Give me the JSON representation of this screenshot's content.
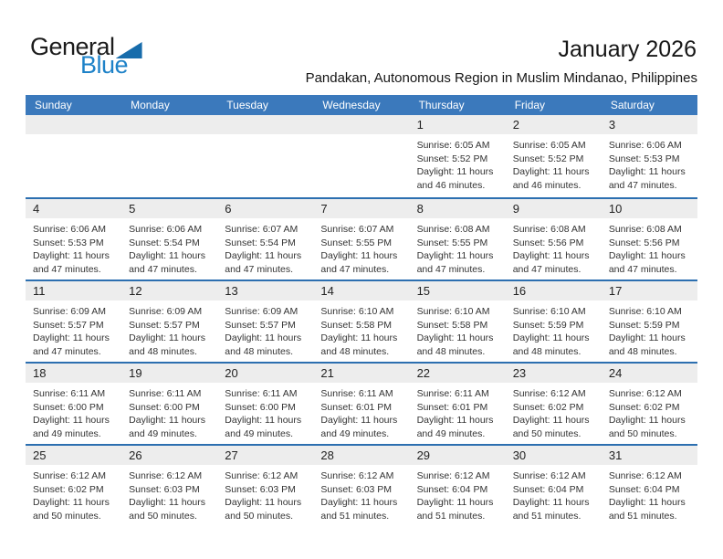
{
  "logo": {
    "part1": "General",
    "part2": "Blue"
  },
  "header": {
    "title": "January 2026",
    "subtitle": "Pandakan, Autonomous Region in Muslim Mindanao, Philippines"
  },
  "colors": {
    "header-blue": "#3b79bc",
    "separator-blue": "#2c6fb0",
    "band-gray": "#ededed",
    "logo-blue": "#1e82c8",
    "logo-triangle-blue": "#176cab",
    "text-dark": "#333333"
  },
  "calendar": {
    "weekdays": [
      "Sunday",
      "Monday",
      "Tuesday",
      "Wednesday",
      "Thursday",
      "Friday",
      "Saturday"
    ],
    "weeks": [
      {
        "cells": [
          null,
          null,
          null,
          null,
          {
            "day": "1",
            "sunrise": "Sunrise: 6:05 AM",
            "sunset": "Sunset: 5:52 PM",
            "daylight_line1": "Daylight: 11 hours",
            "daylight_line2": "and 46 minutes."
          },
          {
            "day": "2",
            "sunrise": "Sunrise: 6:05 AM",
            "sunset": "Sunset: 5:52 PM",
            "daylight_line1": "Daylight: 11 hours",
            "daylight_line2": "and 46 minutes."
          },
          {
            "day": "3",
            "sunrise": "Sunrise: 6:06 AM",
            "sunset": "Sunset: 5:53 PM",
            "daylight_line1": "Daylight: 11 hours",
            "daylight_line2": "and 47 minutes."
          }
        ]
      },
      {
        "cells": [
          {
            "day": "4",
            "sunrise": "Sunrise: 6:06 AM",
            "sunset": "Sunset: 5:53 PM",
            "daylight_line1": "Daylight: 11 hours",
            "daylight_line2": "and 47 minutes."
          },
          {
            "day": "5",
            "sunrise": "Sunrise: 6:06 AM",
            "sunset": "Sunset: 5:54 PM",
            "daylight_line1": "Daylight: 11 hours",
            "daylight_line2": "and 47 minutes."
          },
          {
            "day": "6",
            "sunrise": "Sunrise: 6:07 AM",
            "sunset": "Sunset: 5:54 PM",
            "daylight_line1": "Daylight: 11 hours",
            "daylight_line2": "and 47 minutes."
          },
          {
            "day": "7",
            "sunrise": "Sunrise: 6:07 AM",
            "sunset": "Sunset: 5:55 PM",
            "daylight_line1": "Daylight: 11 hours",
            "daylight_line2": "and 47 minutes."
          },
          {
            "day": "8",
            "sunrise": "Sunrise: 6:08 AM",
            "sunset": "Sunset: 5:55 PM",
            "daylight_line1": "Daylight: 11 hours",
            "daylight_line2": "and 47 minutes."
          },
          {
            "day": "9",
            "sunrise": "Sunrise: 6:08 AM",
            "sunset": "Sunset: 5:56 PM",
            "daylight_line1": "Daylight: 11 hours",
            "daylight_line2": "and 47 minutes."
          },
          {
            "day": "10",
            "sunrise": "Sunrise: 6:08 AM",
            "sunset": "Sunset: 5:56 PM",
            "daylight_line1": "Daylight: 11 hours",
            "daylight_line2": "and 47 minutes."
          }
        ]
      },
      {
        "cells": [
          {
            "day": "11",
            "sunrise": "Sunrise: 6:09 AM",
            "sunset": "Sunset: 5:57 PM",
            "daylight_line1": "Daylight: 11 hours",
            "daylight_line2": "and 47 minutes."
          },
          {
            "day": "12",
            "sunrise": "Sunrise: 6:09 AM",
            "sunset": "Sunset: 5:57 PM",
            "daylight_line1": "Daylight: 11 hours",
            "daylight_line2": "and 48 minutes."
          },
          {
            "day": "13",
            "sunrise": "Sunrise: 6:09 AM",
            "sunset": "Sunset: 5:57 PM",
            "daylight_line1": "Daylight: 11 hours",
            "daylight_line2": "and 48 minutes."
          },
          {
            "day": "14",
            "sunrise": "Sunrise: 6:10 AM",
            "sunset": "Sunset: 5:58 PM",
            "daylight_line1": "Daylight: 11 hours",
            "daylight_line2": "and 48 minutes."
          },
          {
            "day": "15",
            "sunrise": "Sunrise: 6:10 AM",
            "sunset": "Sunset: 5:58 PM",
            "daylight_line1": "Daylight: 11 hours",
            "daylight_line2": "and 48 minutes."
          },
          {
            "day": "16",
            "sunrise": "Sunrise: 6:10 AM",
            "sunset": "Sunset: 5:59 PM",
            "daylight_line1": "Daylight: 11 hours",
            "daylight_line2": "and 48 minutes."
          },
          {
            "day": "17",
            "sunrise": "Sunrise: 6:10 AM",
            "sunset": "Sunset: 5:59 PM",
            "daylight_line1": "Daylight: 11 hours",
            "daylight_line2": "and 48 minutes."
          }
        ]
      },
      {
        "cells": [
          {
            "day": "18",
            "sunrise": "Sunrise: 6:11 AM",
            "sunset": "Sunset: 6:00 PM",
            "daylight_line1": "Daylight: 11 hours",
            "daylight_line2": "and 49 minutes."
          },
          {
            "day": "19",
            "sunrise": "Sunrise: 6:11 AM",
            "sunset": "Sunset: 6:00 PM",
            "daylight_line1": "Daylight: 11 hours",
            "daylight_line2": "and 49 minutes."
          },
          {
            "day": "20",
            "sunrise": "Sunrise: 6:11 AM",
            "sunset": "Sunset: 6:00 PM",
            "daylight_line1": "Daylight: 11 hours",
            "daylight_line2": "and 49 minutes."
          },
          {
            "day": "21",
            "sunrise": "Sunrise: 6:11 AM",
            "sunset": "Sunset: 6:01 PM",
            "daylight_line1": "Daylight: 11 hours",
            "daylight_line2": "and 49 minutes."
          },
          {
            "day": "22",
            "sunrise": "Sunrise: 6:11 AM",
            "sunset": "Sunset: 6:01 PM",
            "daylight_line1": "Daylight: 11 hours",
            "daylight_line2": "and 49 minutes."
          },
          {
            "day": "23",
            "sunrise": "Sunrise: 6:12 AM",
            "sunset": "Sunset: 6:02 PM",
            "daylight_line1": "Daylight: 11 hours",
            "daylight_line2": "and 50 minutes."
          },
          {
            "day": "24",
            "sunrise": "Sunrise: 6:12 AM",
            "sunset": "Sunset: 6:02 PM",
            "daylight_line1": "Daylight: 11 hours",
            "daylight_line2": "and 50 minutes."
          }
        ]
      },
      {
        "cells": [
          {
            "day": "25",
            "sunrise": "Sunrise: 6:12 AM",
            "sunset": "Sunset: 6:02 PM",
            "daylight_line1": "Daylight: 11 hours",
            "daylight_line2": "and 50 minutes."
          },
          {
            "day": "26",
            "sunrise": "Sunrise: 6:12 AM",
            "sunset": "Sunset: 6:03 PM",
            "daylight_line1": "Daylight: 11 hours",
            "daylight_line2": "and 50 minutes."
          },
          {
            "day": "27",
            "sunrise": "Sunrise: 6:12 AM",
            "sunset": "Sunset: 6:03 PM",
            "daylight_line1": "Daylight: 11 hours",
            "daylight_line2": "and 50 minutes."
          },
          {
            "day": "28",
            "sunrise": "Sunrise: 6:12 AM",
            "sunset": "Sunset: 6:03 PM",
            "daylight_line1": "Daylight: 11 hours",
            "daylight_line2": "and 51 minutes."
          },
          {
            "day": "29",
            "sunrise": "Sunrise: 6:12 AM",
            "sunset": "Sunset: 6:04 PM",
            "daylight_line1": "Daylight: 11 hours",
            "daylight_line2": "and 51 minutes."
          },
          {
            "day": "30",
            "sunrise": "Sunrise: 6:12 AM",
            "sunset": "Sunset: 6:04 PM",
            "daylight_line1": "Daylight: 11 hours",
            "daylight_line2": "and 51 minutes."
          },
          {
            "day": "31",
            "sunrise": "Sunrise: 6:12 AM",
            "sunset": "Sunset: 6:04 PM",
            "daylight_line1": "Daylight: 11 hours",
            "daylight_line2": "and 51 minutes."
          }
        ]
      }
    ]
  }
}
